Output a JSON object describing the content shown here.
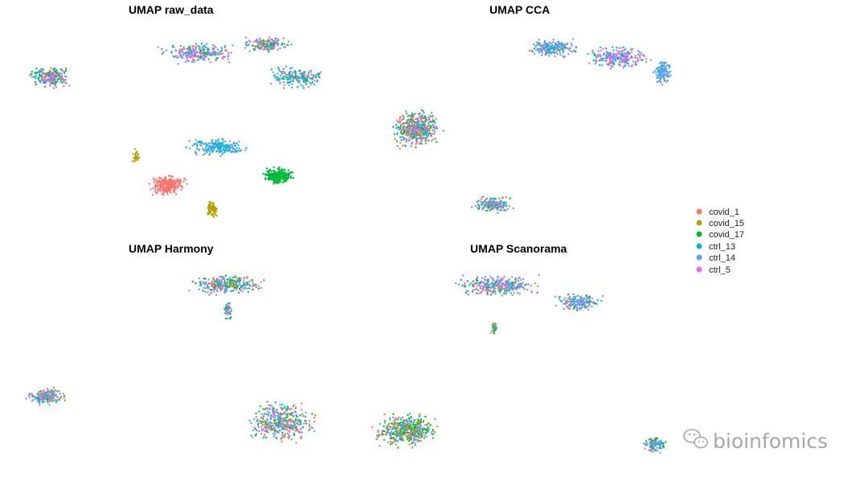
{
  "chart_data": {
    "type": "scatter",
    "panels": [
      {
        "title": "UMAP raw_data",
        "clusters": [
          {
            "cx": 62,
            "cy": 96,
            "rx": 30,
            "ry": 17,
            "n": 230,
            "mix": [
              0.05,
              0.02,
              0.3,
              0.08,
              0.3,
              0.25
            ]
          },
          {
            "cx": 245,
            "cy": 66,
            "rx": 55,
            "ry": 15,
            "n": 260,
            "mix": [
              0.05,
              0.05,
              0.1,
              0.1,
              0.45,
              0.25
            ]
          },
          {
            "cx": 330,
            "cy": 55,
            "rx": 35,
            "ry": 11,
            "n": 150,
            "mix": [
              0.05,
              0.1,
              0.25,
              0.1,
              0.2,
              0.3
            ]
          },
          {
            "cx": 368,
            "cy": 96,
            "rx": 40,
            "ry": 16,
            "n": 210,
            "mix": [
              0.08,
              0.05,
              0.12,
              0.35,
              0.3,
              0.1
            ]
          },
          {
            "cx": 270,
            "cy": 183,
            "rx": 45,
            "ry": 13,
            "n": 230,
            "mix": [
              0,
              0,
              0,
              0.5,
              0.5,
              0
            ]
          },
          {
            "cx": 208,
            "cy": 230,
            "rx": 27,
            "ry": 14,
            "n": 250,
            "mix": [
              1,
              0,
              0,
              0,
              0,
              0
            ]
          },
          {
            "cx": 264,
            "cy": 260,
            "rx": 8,
            "ry": 13,
            "n": 80,
            "mix": [
              0,
              1,
              0,
              0,
              0,
              0
            ]
          },
          {
            "cx": 346,
            "cy": 219,
            "rx": 23,
            "ry": 12,
            "n": 260,
            "mix": [
              0,
              0,
              1,
              0,
              0,
              0
            ]
          },
          {
            "cx": 170,
            "cy": 194,
            "rx": 8,
            "ry": 10,
            "n": 30,
            "mix": [
              0,
              1,
              0,
              0,
              0,
              0
            ]
          }
        ]
      },
      {
        "title": "UMAP CCA",
        "clusters": [
          {
            "cx": 685,
            "cy": 60,
            "rx": 35,
            "ry": 14,
            "n": 200,
            "mix": [
              0.05,
              0.02,
              0.08,
              0.15,
              0.6,
              0.1
            ]
          },
          {
            "cx": 770,
            "cy": 72,
            "rx": 45,
            "ry": 16,
            "n": 240,
            "mix": [
              0.05,
              0.02,
              0.05,
              0.1,
              0.45,
              0.33
            ]
          },
          {
            "cx": 825,
            "cy": 90,
            "rx": 13,
            "ry": 22,
            "n": 120,
            "mix": [
              0,
              0,
              0.05,
              0.15,
              0.8,
              0
            ]
          },
          {
            "cx": 518,
            "cy": 160,
            "rx": 37,
            "ry": 27,
            "n": 480,
            "mix": [
              0.18,
              0.1,
              0.2,
              0.17,
              0.2,
              0.15
            ]
          },
          {
            "cx": 612,
            "cy": 254,
            "rx": 30,
            "ry": 12,
            "n": 170,
            "mix": [
              0.15,
              0.05,
              0.15,
              0.15,
              0.35,
              0.15
            ]
          }
        ]
      },
      {
        "title": "UMAP Harmony",
        "clusters": [
          {
            "cx": 280,
            "cy": 354,
            "rx": 55,
            "ry": 14,
            "n": 300,
            "mix": [
              0.12,
              0.08,
              0.2,
              0.1,
              0.35,
              0.15
            ]
          },
          {
            "cx": 284,
            "cy": 386,
            "rx": 6,
            "ry": 14,
            "n": 50,
            "mix": [
              0.15,
              0.05,
              0.2,
              0.1,
              0.3,
              0.2
            ]
          },
          {
            "cx": 57,
            "cy": 493,
            "rx": 30,
            "ry": 13,
            "n": 190,
            "mix": [
              0.12,
              0.08,
              0.15,
              0.15,
              0.3,
              0.2
            ]
          },
          {
            "cx": 350,
            "cy": 525,
            "rx": 50,
            "ry": 30,
            "n": 420,
            "mix": [
              0.15,
              0.08,
              0.2,
              0.15,
              0.25,
              0.17
            ]
          }
        ]
      },
      {
        "title": "UMAP Scanorama",
        "clusters": [
          {
            "cx": 620,
            "cy": 356,
            "rx": 60,
            "ry": 16,
            "n": 320,
            "mix": [
              0.1,
              0.05,
              0.15,
              0.1,
              0.4,
              0.2
            ]
          },
          {
            "cx": 720,
            "cy": 376,
            "rx": 35,
            "ry": 12,
            "n": 160,
            "mix": [
              0.05,
              0.03,
              0.1,
              0.15,
              0.6,
              0.07
            ]
          },
          {
            "cx": 615,
            "cy": 408,
            "rx": 6,
            "ry": 10,
            "n": 35,
            "mix": [
              0.4,
              0.1,
              0.2,
              0.1,
              0.2,
              0
            ]
          },
          {
            "cx": 505,
            "cy": 535,
            "rx": 45,
            "ry": 25,
            "n": 450,
            "mix": [
              0.12,
              0.18,
              0.3,
              0.1,
              0.25,
              0.05
            ]
          },
          {
            "cx": 815,
            "cy": 553,
            "rx": 17,
            "ry": 13,
            "n": 110,
            "mix": [
              0.1,
              0.05,
              0.25,
              0.15,
              0.3,
              0.15
            ]
          }
        ]
      }
    ],
    "series": [
      {
        "name": "covid_1",
        "color": "#F8766D"
      },
      {
        "name": "covid_15",
        "color": "#B79F00"
      },
      {
        "name": "covid_17",
        "color": "#00BA38"
      },
      {
        "name": "ctrl_13",
        "color": "#00BFC4"
      },
      {
        "name": "ctrl_14",
        "color": "#619CFF"
      },
      {
        "name": "ctrl_5",
        "color": "#F564E3"
      }
    ],
    "legend_position": "right",
    "grid": false
  },
  "watermark": {
    "text": "bioinfomics",
    "icon": "wechat-icon"
  }
}
